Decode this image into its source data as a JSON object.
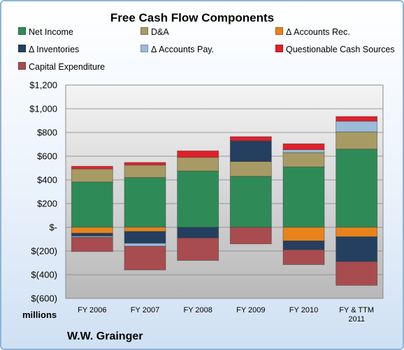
{
  "chart_data": {
    "type": "bar",
    "stacked": true,
    "title": "Free Cash Flow Components",
    "ylabel": "millions",
    "ylim": [
      -600,
      1200
    ],
    "ytick_step": 200,
    "ytick_labels": [
      "$(600)",
      "$(400)",
      "$(200)",
      "$-",
      "$200",
      "$400",
      "$600",
      "$800",
      "$1,000",
      "$1,200"
    ],
    "categories": [
      "FY 2006",
      "FY 2007",
      "FY 2008",
      "FY 2009",
      "FY 2010",
      "FY & TTM|2011"
    ],
    "legend_placement": "top",
    "series": [
      {
        "name": "Net Income",
        "color": "#2e8b57",
        "values": [
          383,
          420,
          475,
          430,
          510,
          660
        ]
      },
      {
        "name": "D&A",
        "color": "#a89a64",
        "values": [
          110,
          105,
          115,
          125,
          120,
          145
        ]
      },
      {
        "name": "Δ Accounts Rec.",
        "color": "#e8821c",
        "values": [
          -50,
          -35,
          0,
          0,
          -115,
          -80
        ]
      },
      {
        "name": "Δ Inventories",
        "color": "#243f60",
        "values": [
          -25,
          -100,
          -90,
          175,
          -75,
          -210
        ]
      },
      {
        "name": "Δ Accounts Pay.",
        "color": "#9bbbd9",
        "values": [
          -10,
          -25,
          0,
          0,
          25,
          90
        ]
      },
      {
        "name": "Questionable Cash Sources",
        "color": "#e0202a",
        "values": [
          22,
          22,
          55,
          35,
          50,
          40
        ]
      },
      {
        "name": "Capital Expenditure",
        "color": "#a84c4f",
        "values": [
          -120,
          -200,
          -190,
          -140,
          -125,
          -200
        ]
      }
    ]
  },
  "footer": {
    "company": "W.W. Grainger"
  }
}
